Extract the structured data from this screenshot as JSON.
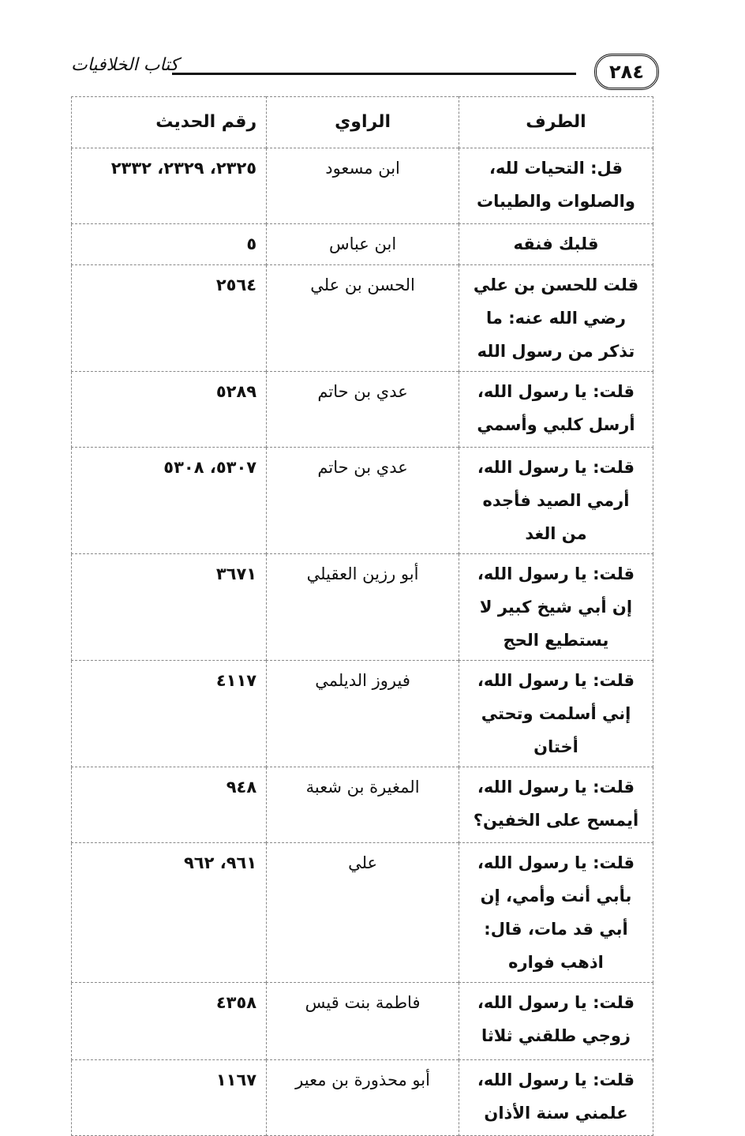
{
  "header": {
    "page_number": "٢٨٤",
    "book_title": "كتاب الخلافيات"
  },
  "table": {
    "columns": [
      "الطرف",
      "الراوي",
      "رقم الحديث"
    ],
    "rows": [
      {
        "tarf": "قل: التحيات لله، والصلوات والطيبات",
        "rawi": "ابن مسعود",
        "num": "٢٣٢٥، ٢٣٢٩، ٢٣٣٢",
        "h": 96
      },
      {
        "tarf": "قلبك فنقه",
        "rawi": "ابن عباس",
        "num": "٥",
        "h": 52
      },
      {
        "tarf": "قلت للحسن بن علي رضي الله عنه: ما تذكر من رسول الله",
        "rawi": "الحسن بن علي",
        "num": "٢٥٦٤",
        "h": 95
      },
      {
        "tarf": "قلت: يا رسول الله، أرسل كلبي وأسمي",
        "rawi": "عدي بن حاتم",
        "num": "٥٢٨٩",
        "h": 96
      },
      {
        "tarf": "قلت: يا رسول الله، أرمي الصيد فأجده من الغد",
        "rawi": "عدي بن حاتم",
        "num": "٥٣٠٧، ٥٣٠٨",
        "h": 96
      },
      {
        "tarf": "قلت: يا رسول الله، إن أبي شيخ كبير لا يستطيع الحج",
        "rawi": "أبو رزين العقيلي",
        "num": "٣٦٧١",
        "h": 95
      },
      {
        "tarf": "قلت: يا رسول الله، إني أسلمت وتحتي أختان",
        "rawi": "فيروز الديلمي",
        "num": "٤١١٧",
        "h": 96
      },
      {
        "tarf": "قلت: يا رسول الله، أيمسح على الخفين؟",
        "rawi": "المغيرة بن شعبة",
        "num": "٩٤٨",
        "h": 96
      },
      {
        "tarf": "قلت: يا رسول الله، بأبي أنت وأمي، إن أبي قد مات، قال: اذهب فواره",
        "rawi": "علي",
        "num": "٩٦١، ٩٦٢",
        "h": 134
      },
      {
        "tarf": "قلت: يا رسول الله، زوجي طلقني ثلاثا",
        "rawi": "فاطمة بنت قيس",
        "num": "٤٣٥٨",
        "h": 98
      },
      {
        "tarf": "قلت: يا رسول الله، علمني سنة الأذان",
        "rawi": "أبو محذورة بن معير",
        "num": "١١٦٧",
        "h": 96
      }
    ]
  }
}
